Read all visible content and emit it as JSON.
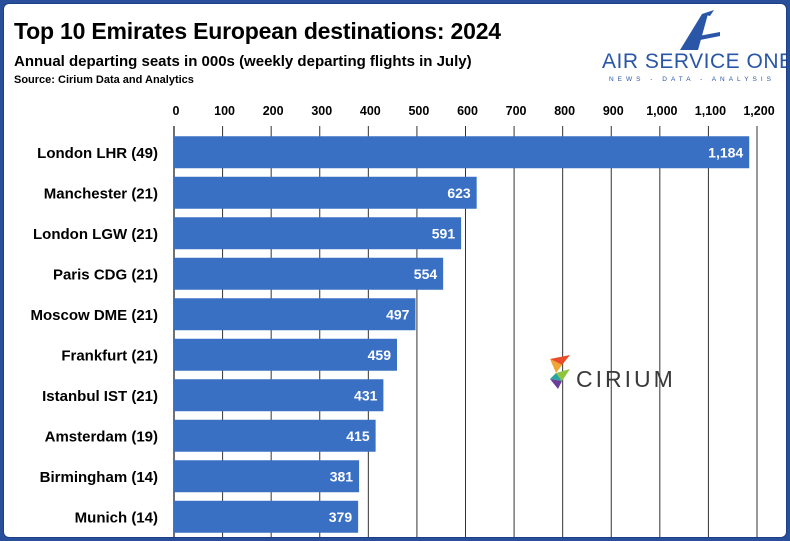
{
  "header": {
    "title": "Top 10 Emirates European destinations: 2024",
    "subtitle": "Annual departing seats in 000s (weekly departing flights in July)",
    "source": "Source: Cirium Data and Analytics"
  },
  "logo": {
    "name": "AIR SERVICE ONE",
    "tagline": "NEWS - DATA - ANALYSIS",
    "color": "#2a56a8"
  },
  "watermark": {
    "name": "CIRIUM"
  },
  "chart_data": {
    "type": "bar",
    "orientation": "horizontal",
    "title": "Top 10 Emirates European destinations: 2024",
    "subtitle": "Annual departing seats in 000s (weekly departing flights in July)",
    "categories": [
      "London LHR (49)",
      "Manchester (21)",
      "London LGW (21)",
      "Paris CDG (21)",
      "Moscow DME (21)",
      "Frankfurt (21)",
      "Istanbul IST (21)",
      "Amsterdam (19)",
      "Birmingham (14)",
      "Munich (14)"
    ],
    "values": [
      1184,
      623,
      591,
      554,
      497,
      459,
      431,
      415,
      381,
      379
    ],
    "value_labels": [
      "1,184",
      "623",
      "591",
      "554",
      "497",
      "459",
      "431",
      "415",
      "381",
      "379"
    ],
    "xticks": [
      "0",
      "100",
      "200",
      "300",
      "400",
      "500",
      "600",
      "700",
      "800",
      "900",
      "1,000",
      "1,100",
      "1,200"
    ],
    "xlim": [
      0,
      1200
    ],
    "axis_position": "top",
    "grid": true,
    "bar_color": "#3a70c4"
  }
}
